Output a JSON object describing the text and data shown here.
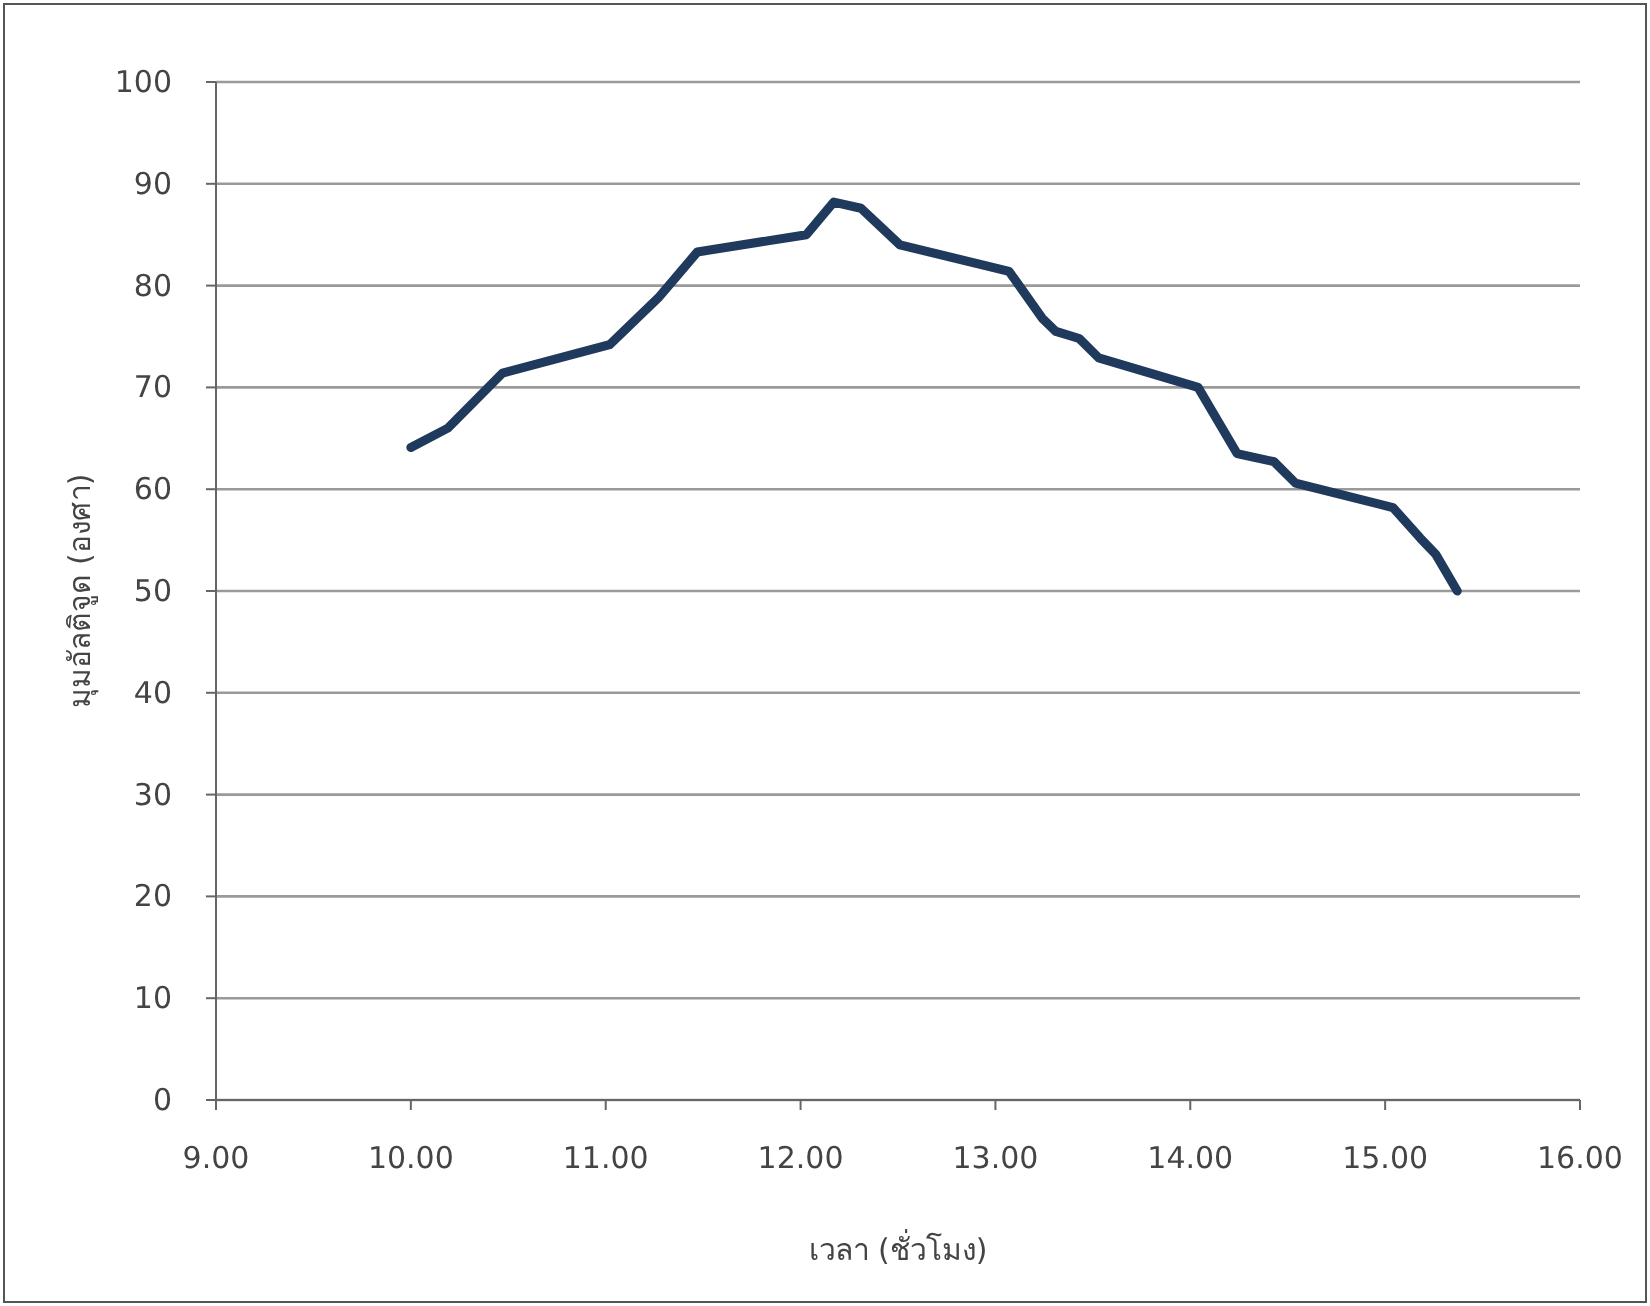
{
  "chart_data": {
    "type": "line",
    "xlabel": "เวลา (ชั่วโมง)",
    "ylabel": "มุมอัลติจูด (องศา)",
    "series": [
      {
        "color": "#1f3a5c",
        "x": [
          10.0,
          10.19,
          10.47,
          11.02,
          11.27,
          11.47,
          12.03,
          12.1,
          12.17,
          12.31,
          12.51,
          13.07,
          13.24,
          13.31,
          13.43,
          13.53,
          14.04,
          14.24,
          14.43,
          14.54,
          15.04,
          15.18,
          15.26,
          15.37
        ],
        "values": [
          64.1,
          66.0,
          71.4,
          74.2,
          78.8,
          83.3,
          85.0,
          86.6,
          88.2,
          87.6,
          84.0,
          81.4,
          76.8,
          75.5,
          74.8,
          72.9,
          70.0,
          63.5,
          62.7,
          60.6,
          58.2,
          55.2,
          53.6,
          50.0
        ]
      }
    ],
    "xlim": [
      9,
      16
    ],
    "xticks": [
      {
        "value": 9,
        "label": "9.00"
      },
      {
        "value": 10,
        "label": "10.00"
      },
      {
        "value": 11,
        "label": "11.00"
      },
      {
        "value": 12,
        "label": "12.00"
      },
      {
        "value": 13,
        "label": "13.00"
      },
      {
        "value": 14,
        "label": "14.00"
      },
      {
        "value": 15,
        "label": "15.00"
      },
      {
        "value": 16,
        "label": "16.00"
      }
    ],
    "ylim": [
      0,
      100
    ],
    "yticks": [
      0,
      10,
      20,
      30,
      40,
      50,
      60,
      70,
      80,
      90,
      100
    ],
    "grid": "y",
    "marker": "none",
    "line_style": "solid"
  }
}
